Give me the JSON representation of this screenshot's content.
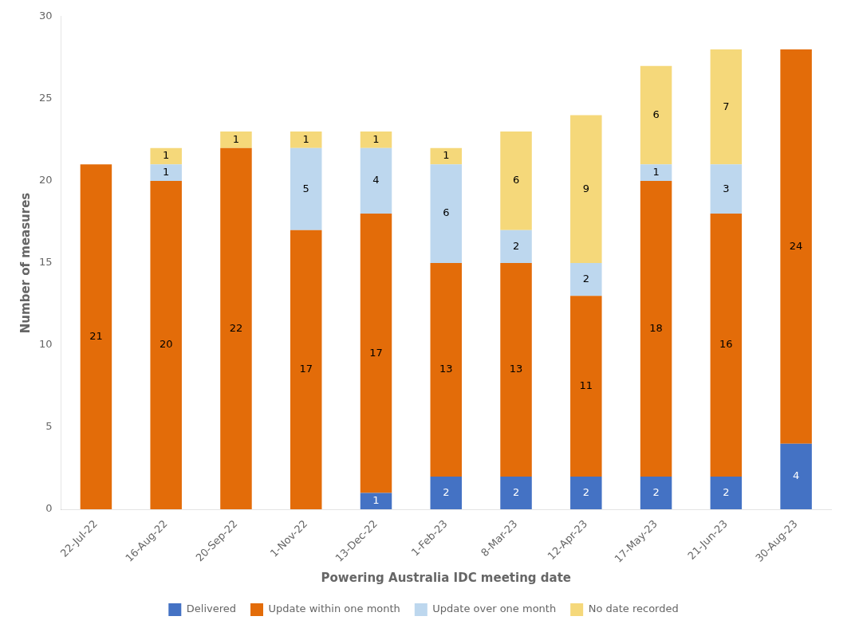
{
  "chart_data": {
    "type": "bar",
    "stacked": true,
    "categories": [
      "22-Jul-22",
      "16-Aug-22",
      "20-Sep-22",
      "1-Nov-22",
      "13-Dec-22",
      "1-Feb-23",
      "8-Mar-23",
      "12-Apr-23",
      "17-May-23",
      "21-Jun-23",
      "30-Aug-23"
    ],
    "series": [
      {
        "name": "Delivered",
        "color": "#4472C4",
        "values": [
          0,
          0,
          0,
          0,
          1,
          2,
          2,
          2,
          2,
          2,
          4
        ]
      },
      {
        "name": "Update within one month",
        "color": "#E36C09",
        "values": [
          21,
          20,
          22,
          17,
          17,
          13,
          13,
          11,
          18,
          16,
          24
        ]
      },
      {
        "name": "Update over one month",
        "color": "#BDD7EE",
        "values": [
          0,
          1,
          0,
          5,
          4,
          6,
          2,
          2,
          1,
          3,
          0
        ]
      },
      {
        "name": "No date recorded",
        "color": "#F5D87A",
        "values": [
          0,
          1,
          1,
          1,
          1,
          1,
          6,
          9,
          6,
          7,
          0
        ]
      }
    ],
    "xlabel": "Powering Australia IDC meeting date",
    "ylabel": "Number of measures",
    "ylim": [
      0,
      30
    ],
    "yticks": [
      0,
      5,
      10,
      15,
      20,
      25,
      30
    ],
    "grid": false,
    "legend": "bottom",
    "data_labels": true
  }
}
